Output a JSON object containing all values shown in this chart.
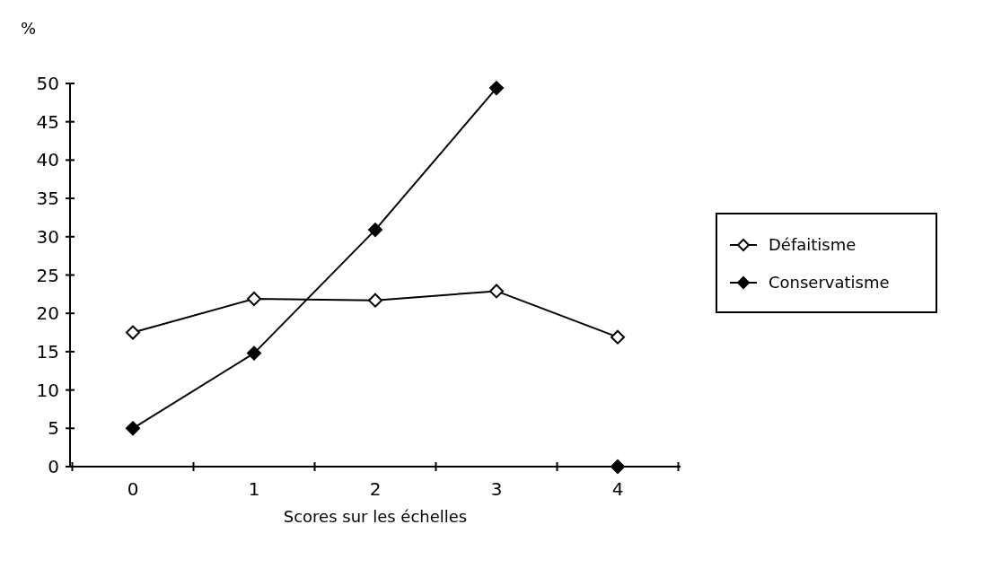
{
  "chart_data": {
    "type": "line",
    "ylabel": "%",
    "xlabel": "Scores sur les échelles",
    "categories": [
      "0",
      "1",
      "2",
      "3",
      "4"
    ],
    "series": [
      {
        "name": "Défaitisme",
        "color": "#000000",
        "values": [
          17.5,
          21.9,
          21.7,
          22.9,
          16.9
        ],
        "marker": "diamond"
      },
      {
        "name": "Conservatisme",
        "color": "#000000",
        "values": [
          5,
          14.8,
          30.9,
          49.4,
          null
        ],
        "marker": "diamond"
      },
      {
        "type": "scatter",
        "color": "#000000",
        "x": [
          "4"
        ],
        "values": [
          0
        ],
        "marker": "diamond"
      }
    ],
    "ylim": [
      0,
      50
    ],
    "yticks": [
      0,
      5,
      10,
      15,
      20,
      25,
      30,
      35,
      40,
      45,
      50
    ],
    "grid": false,
    "legend": "right"
  }
}
